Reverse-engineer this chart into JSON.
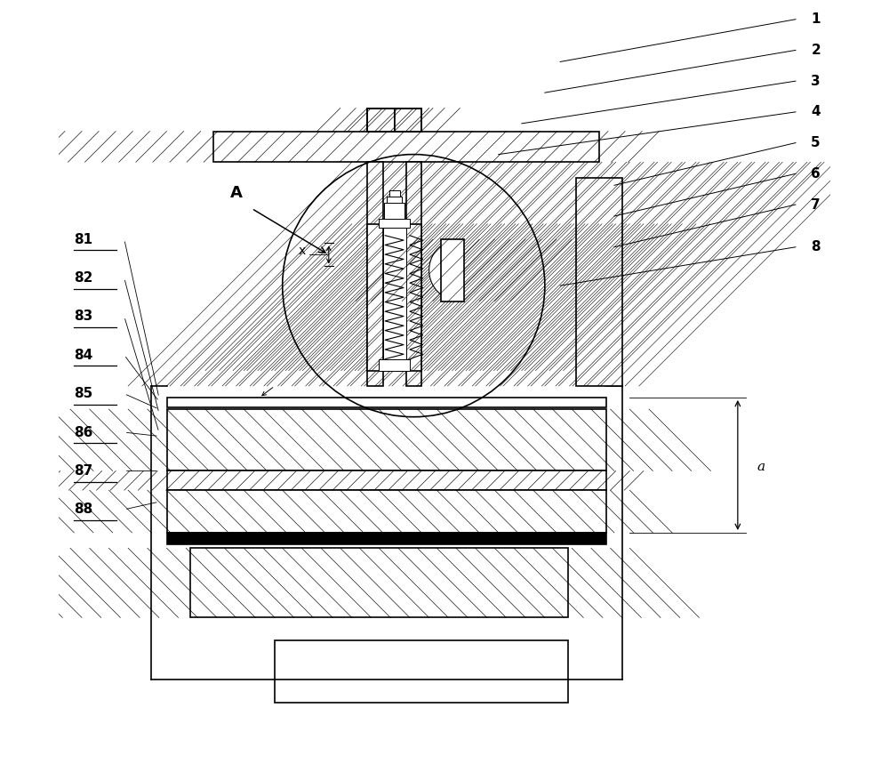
{
  "bg_color": "#ffffff",
  "line_color": "#000000",
  "figure_width": 10.0,
  "figure_height": 8.68,
  "labels_right": [
    "1",
    "2",
    "3",
    "4",
    "5",
    "6",
    "7",
    "8"
  ],
  "labels_left": [
    "81",
    "82",
    "83",
    "84",
    "85",
    "86",
    "87",
    "88"
  ],
  "label_a": "A",
  "label_x": "x",
  "label_a_dim": "a",
  "refs": [
    [
      "1",
      97.5,
      65,
      92
    ],
    [
      "2",
      93.5,
      63,
      88
    ],
    [
      "3",
      89.5,
      60,
      84
    ],
    [
      "4",
      85.5,
      57,
      80
    ],
    [
      "5",
      81.5,
      72,
      76
    ],
    [
      "6",
      77.5,
      72,
      72
    ],
    [
      "7",
      73.5,
      72,
      68
    ],
    [
      "8",
      68.0,
      65,
      63
    ]
  ],
  "left_labels": [
    [
      "81",
      69
    ],
    [
      "82",
      64
    ],
    [
      "83",
      59
    ],
    [
      "84",
      54
    ],
    [
      "85",
      49
    ],
    [
      "86",
      44
    ],
    [
      "87",
      39
    ],
    [
      "88",
      34
    ]
  ]
}
